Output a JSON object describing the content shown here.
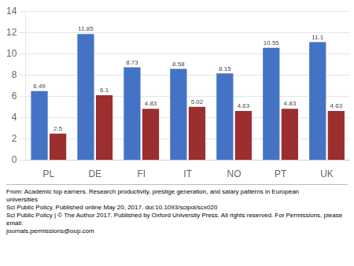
{
  "chart_data": {
    "type": "bar",
    "categories": [
      "PL",
      "DE",
      "FI",
      "IT",
      "NO",
      "PT",
      "UK"
    ],
    "series": [
      {
        "color": "#4472C4",
        "values": [
          6.49,
          11.85,
          8.73,
          8.58,
          8.15,
          10.55,
          11.1
        ]
      },
      {
        "color": "#9B2E2E",
        "values": [
          2.5,
          6.1,
          4.83,
          5.02,
          4.63,
          4.83,
          4.63
        ]
      }
    ],
    "ylim": [
      0,
      14
    ],
    "yticks": [
      0,
      2,
      4,
      6,
      8,
      10,
      12,
      14
    ],
    "grid": true,
    "data_labels": true,
    "annotations": [
      "From: Academic top earners. Research productivity, prestige generation, and salary patterns in European",
      "universities",
      "Sci Public Policy. Published online  May 20, 2017. doi:10.1093/scipol/scx020",
      "Sci Public Policy | © The Author 2017. Published by Oxford University Press. All rights reserved. For Permissions, please email:",
      "journals.permissions@oup.com"
    ]
  }
}
